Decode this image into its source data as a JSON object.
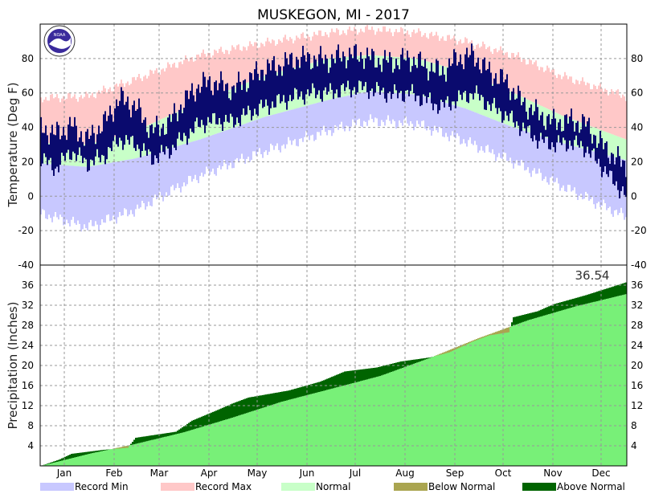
{
  "title": "MUSKEGON, MI - 2017",
  "logo_text": "NOAA",
  "colors": {
    "record_min": "#c8c8ff",
    "record_max": "#ffc8c8",
    "normal": "#c8ffc8",
    "observed_temp": "#0a0a6e",
    "normal_precip": "#78f078",
    "below_normal": "#aaa550",
    "above_normal": "#006400",
    "grid": "#999999"
  },
  "chart_data": [
    {
      "type": "bar",
      "panel": "temperature",
      "ylabel": "Temperature (Deg F)",
      "ylim": [
        -40,
        100
      ],
      "yticks": [
        -40,
        -20,
        0,
        20,
        40,
        60,
        80
      ],
      "months": [
        "Jan",
        "Feb",
        "Mar",
        "Apr",
        "May",
        "Jun",
        "Jul",
        "Aug",
        "Sep",
        "Oct",
        "Nov",
        "Dec"
      ],
      "normal_high_profile": [
        {
          "day": 1,
          "value": 31
        },
        {
          "day": 30,
          "value": 30
        },
        {
          "day": 60,
          "value": 38
        },
        {
          "day": 100,
          "value": 55
        },
        {
          "day": 140,
          "value": 70
        },
        {
          "day": 180,
          "value": 80
        },
        {
          "day": 205,
          "value": 82
        },
        {
          "day": 235,
          "value": 80
        },
        {
          "day": 265,
          "value": 72
        },
        {
          "day": 295,
          "value": 60
        },
        {
          "day": 325,
          "value": 47
        },
        {
          "day": 365,
          "value": 33
        }
      ],
      "normal_low_profile": [
        {
          "day": 1,
          "value": 19
        },
        {
          "day": 30,
          "value": 17
        },
        {
          "day": 60,
          "value": 22
        },
        {
          "day": 100,
          "value": 33
        },
        {
          "day": 140,
          "value": 46
        },
        {
          "day": 180,
          "value": 56
        },
        {
          "day": 205,
          "value": 61
        },
        {
          "day": 235,
          "value": 59
        },
        {
          "day": 265,
          "value": 51
        },
        {
          "day": 295,
          "value": 40
        },
        {
          "day": 325,
          "value": 31
        },
        {
          "day": 365,
          "value": 21
        }
      ],
      "record_high_profile": [
        {
          "day": 1,
          "value": 57
        },
        {
          "day": 30,
          "value": 58
        },
        {
          "day": 60,
          "value": 68
        },
        {
          "day": 100,
          "value": 82
        },
        {
          "day": 140,
          "value": 89
        },
        {
          "day": 180,
          "value": 95
        },
        {
          "day": 205,
          "value": 97
        },
        {
          "day": 235,
          "value": 95
        },
        {
          "day": 265,
          "value": 90
        },
        {
          "day": 295,
          "value": 82
        },
        {
          "day": 325,
          "value": 70
        },
        {
          "day": 365,
          "value": 58
        }
      ],
      "record_low_profile": [
        {
          "day": 1,
          "value": -10
        },
        {
          "day": 30,
          "value": -18
        },
        {
          "day": 60,
          "value": -8
        },
        {
          "day": 100,
          "value": 12
        },
        {
          "day": 140,
          "value": 26
        },
        {
          "day": 180,
          "value": 38
        },
        {
          "day": 205,
          "value": 44
        },
        {
          "day": 235,
          "value": 42
        },
        {
          "day": 265,
          "value": 32
        },
        {
          "day": 295,
          "value": 20
        },
        {
          "day": 325,
          "value": 6
        },
        {
          "day": 365,
          "value": -12
        }
      ],
      "observed_high_profile": [
        {
          "day": 1,
          "value": 40
        },
        {
          "day": 10,
          "value": 36
        },
        {
          "day": 20,
          "value": 41
        },
        {
          "day": 30,
          "value": 33
        },
        {
          "day": 40,
          "value": 42
        },
        {
          "day": 50,
          "value": 57
        },
        {
          "day": 60,
          "value": 52
        },
        {
          "day": 70,
          "value": 38
        },
        {
          "day": 80,
          "value": 42
        },
        {
          "day": 90,
          "value": 55
        },
        {
          "day": 100,
          "value": 65
        },
        {
          "day": 110,
          "value": 66
        },
        {
          "day": 120,
          "value": 62
        },
        {
          "day": 130,
          "value": 68
        },
        {
          "day": 140,
          "value": 74
        },
        {
          "day": 150,
          "value": 76
        },
        {
          "day": 160,
          "value": 80
        },
        {
          "day": 170,
          "value": 80
        },
        {
          "day": 180,
          "value": 79
        },
        {
          "day": 190,
          "value": 82
        },
        {
          "day": 200,
          "value": 82
        },
        {
          "day": 210,
          "value": 79
        },
        {
          "day": 220,
          "value": 78
        },
        {
          "day": 230,
          "value": 80
        },
        {
          "day": 240,
          "value": 76
        },
        {
          "day": 250,
          "value": 72
        },
        {
          "day": 260,
          "value": 80
        },
        {
          "day": 270,
          "value": 82
        },
        {
          "day": 280,
          "value": 72
        },
        {
          "day": 290,
          "value": 67
        },
        {
          "day": 300,
          "value": 55
        },
        {
          "day": 310,
          "value": 48
        },
        {
          "day": 320,
          "value": 43
        },
        {
          "day": 330,
          "value": 44
        },
        {
          "day": 340,
          "value": 42
        },
        {
          "day": 350,
          "value": 30
        },
        {
          "day": 365,
          "value": 17
        }
      ],
      "observed_low_profile": [
        {
          "day": 1,
          "value": 22
        },
        {
          "day": 10,
          "value": 16
        },
        {
          "day": 20,
          "value": 26
        },
        {
          "day": 30,
          "value": 19
        },
        {
          "day": 40,
          "value": 23
        },
        {
          "day": 50,
          "value": 33
        },
        {
          "day": 60,
          "value": 30
        },
        {
          "day": 70,
          "value": 22
        },
        {
          "day": 80,
          "value": 26
        },
        {
          "day": 90,
          "value": 34
        },
        {
          "day": 100,
          "value": 42
        },
        {
          "day": 110,
          "value": 44
        },
        {
          "day": 120,
          "value": 43
        },
        {
          "day": 130,
          "value": 48
        },
        {
          "day": 140,
          "value": 52
        },
        {
          "day": 150,
          "value": 55
        },
        {
          "day": 160,
          "value": 58
        },
        {
          "day": 170,
          "value": 60
        },
        {
          "day": 180,
          "value": 60
        },
        {
          "day": 190,
          "value": 62
        },
        {
          "day": 200,
          "value": 63
        },
        {
          "day": 210,
          "value": 61
        },
        {
          "day": 220,
          "value": 59
        },
        {
          "day": 230,
          "value": 60
        },
        {
          "day": 240,
          "value": 56
        },
        {
          "day": 250,
          "value": 52
        },
        {
          "day": 260,
          "value": 56
        },
        {
          "day": 270,
          "value": 60
        },
        {
          "day": 280,
          "value": 53
        },
        {
          "day": 290,
          "value": 47
        },
        {
          "day": 300,
          "value": 40
        },
        {
          "day": 310,
          "value": 33
        },
        {
          "day": 320,
          "value": 30
        },
        {
          "day": 330,
          "value": 31
        },
        {
          "day": 340,
          "value": 28
        },
        {
          "day": 350,
          "value": 17
        },
        {
          "day": 365,
          "value": 0
        }
      ]
    },
    {
      "type": "area",
      "panel": "precipitation",
      "ylabel": "Precipitation (Inches)",
      "ylim": [
        0,
        40
      ],
      "yticks": [
        4,
        8,
        12,
        16,
        20,
        24,
        28,
        32,
        36
      ],
      "annotation": "36.54",
      "months": [
        "Jan",
        "Feb",
        "Mar",
        "Apr",
        "May",
        "Jun",
        "Jul",
        "Aug",
        "Sep",
        "Oct",
        "Nov",
        "Dec"
      ],
      "normal_cumulative_profile": [
        {
          "day": 1,
          "value": 0
        },
        {
          "day": 31,
          "value": 2.4
        },
        {
          "day": 59,
          "value": 4.3
        },
        {
          "day": 90,
          "value": 6.7
        },
        {
          "day": 120,
          "value": 9.6
        },
        {
          "day": 151,
          "value": 12.8
        },
        {
          "day": 181,
          "value": 15.3
        },
        {
          "day": 212,
          "value": 17.9
        },
        {
          "day": 243,
          "value": 21.5
        },
        {
          "day": 273,
          "value": 25.4
        },
        {
          "day": 304,
          "value": 29.0
        },
        {
          "day": 334,
          "value": 31.8
        },
        {
          "day": 365,
          "value": 34.2
        }
      ],
      "observed_cumulative_profile": [
        {
          "day": 1,
          "value": 0
        },
        {
          "day": 12,
          "value": 1.2
        },
        {
          "day": 20,
          "value": 2.4
        },
        {
          "day": 40,
          "value": 3.2
        },
        {
          "day": 55,
          "value": 3.6
        },
        {
          "day": 60,
          "value": 5.6
        },
        {
          "day": 85,
          "value": 6.8
        },
        {
          "day": 95,
          "value": 9.0
        },
        {
          "day": 110,
          "value": 11.0
        },
        {
          "day": 120,
          "value": 12.4
        },
        {
          "day": 130,
          "value": 13.6
        },
        {
          "day": 155,
          "value": 15.0
        },
        {
          "day": 175,
          "value": 16.8
        },
        {
          "day": 190,
          "value": 18.8
        },
        {
          "day": 210,
          "value": 19.6
        },
        {
          "day": 225,
          "value": 20.8
        },
        {
          "day": 243,
          "value": 21.6
        },
        {
          "day": 255,
          "value": 22.6
        },
        {
          "day": 270,
          "value": 24.8
        },
        {
          "day": 280,
          "value": 26.0
        },
        {
          "day": 292,
          "value": 26.6
        },
        {
          "day": 295,
          "value": 29.6
        },
        {
          "day": 310,
          "value": 30.8
        },
        {
          "day": 320,
          "value": 32.2
        },
        {
          "day": 340,
          "value": 34.0
        },
        {
          "day": 365,
          "value": 36.54
        }
      ]
    }
  ],
  "legend": [
    {
      "label": "Record Min",
      "color_key": "record_min"
    },
    {
      "label": "Record Max",
      "color_key": "record_max"
    },
    {
      "label": "Normal",
      "color_key": "normal"
    },
    {
      "label": "Below Normal",
      "color_key": "below_normal"
    },
    {
      "label": "Above Normal",
      "color_key": "above_normal"
    }
  ]
}
